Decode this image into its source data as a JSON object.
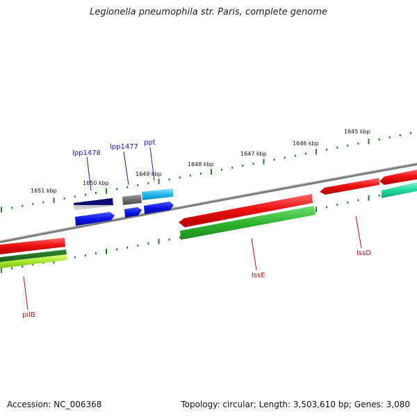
{
  "title": "Legionella pneumophila str. Paris, complete genome",
  "footer": {
    "accession": "Accession: NC_006368",
    "topology": "Topology: circular; Length: 3,503,610 bp; Genes: 3,080"
  },
  "ticks": [
    "1651 kbp",
    "1650 kbp",
    "1649 kbp",
    "1648 kbp",
    "1647 kbp",
    "1646 kbp",
    "1645 kbp"
  ],
  "gene_labels": {
    "lpp1478": "lpp1478",
    "lpp1477": "lpp1477",
    "ppt": "ppt",
    "lssE": "lssE",
    "lssD": "lssD",
    "pilB": "pilB"
  },
  "colors": {
    "backbone": "#808080",
    "dots": "#2a7f2a",
    "label_blue": "#1a1aa6",
    "label_red": "#b01010",
    "red": "#ee1111",
    "green": "#2fb52f",
    "blue": "#0a14e6",
    "navy": "#0a0a70",
    "cyan": "#22b7ee",
    "teal": "#20d8a0",
    "yellowgreen": "#a8e830",
    "gray": "#6e6e6e"
  }
}
